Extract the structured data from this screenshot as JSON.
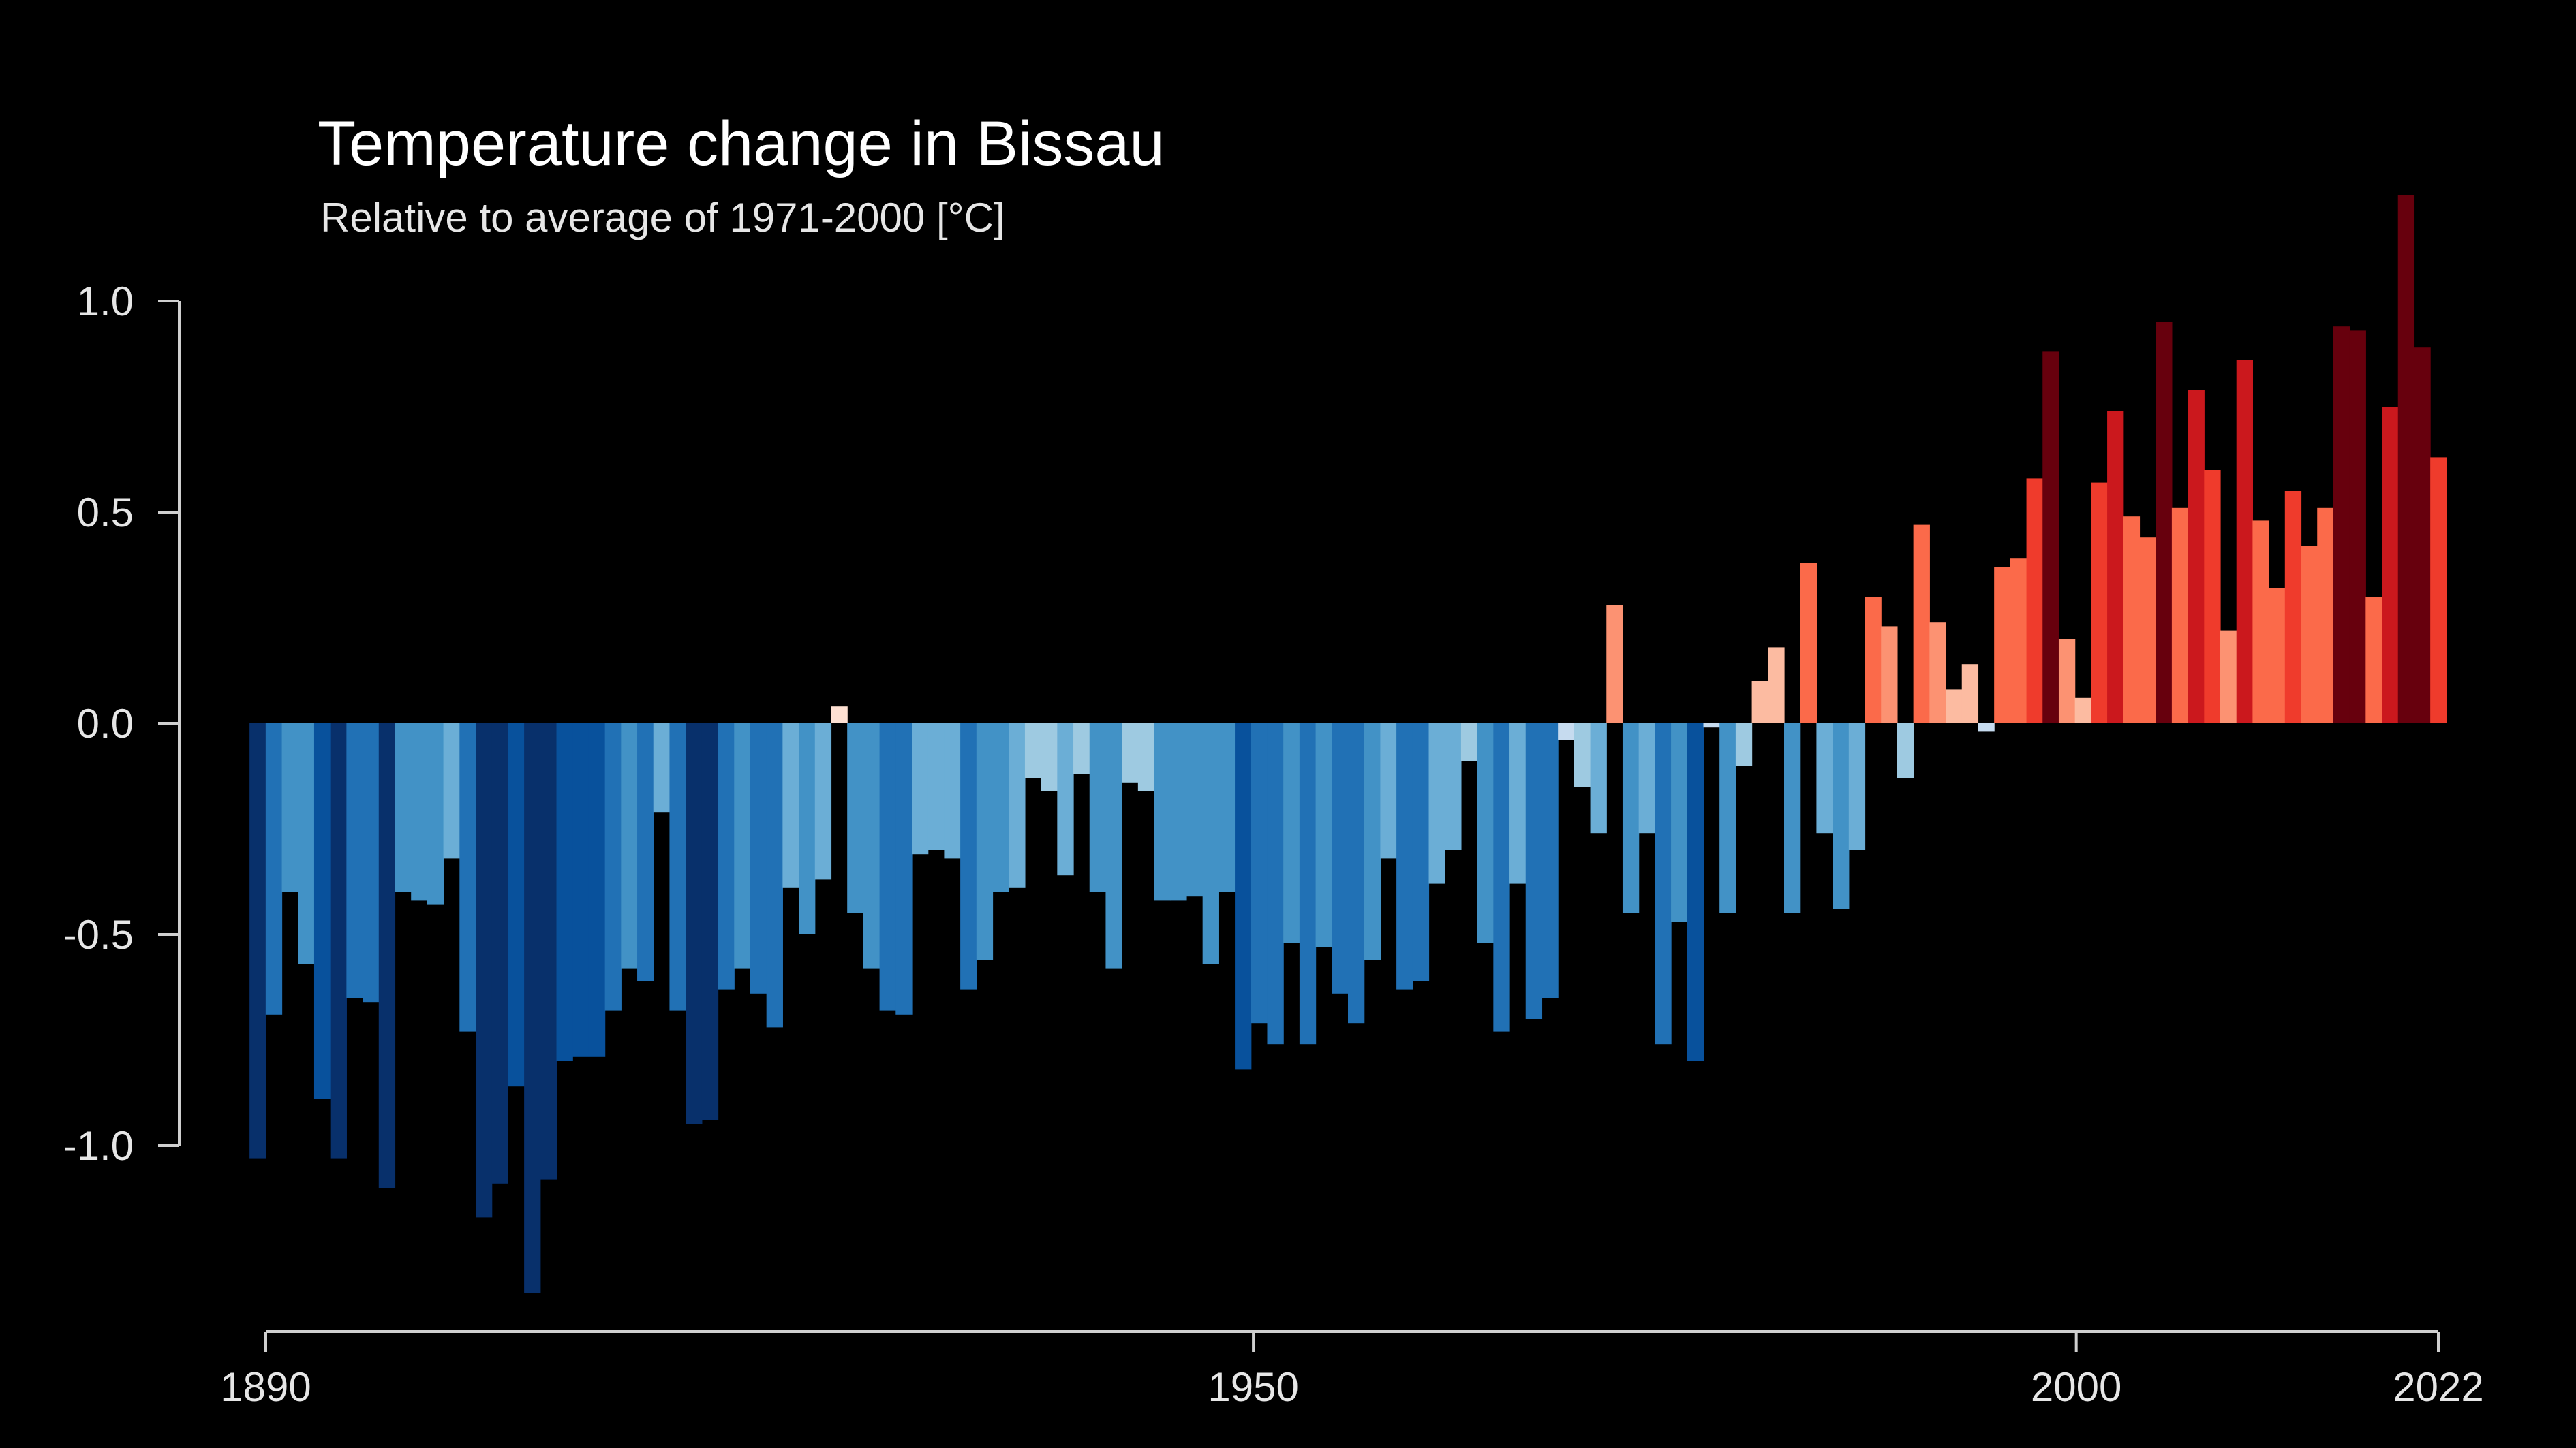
{
  "chart_data": {
    "type": "bar",
    "title": "Temperature change in Bissau",
    "subtitle": "Relative to average of 1971-2000  [°C]",
    "xlabel": "",
    "ylabel": "",
    "x_start": 1890,
    "x_end": 2022,
    "xlim": [
      1890,
      2022
    ],
    "ylim": [
      -1.35,
      1.25
    ],
    "y_ticks": [
      1.0,
      0.5,
      0.0,
      -0.5,
      -1.0
    ],
    "y_tick_labels": [
      "1.0",
      "0.5",
      "0.0",
      "-0.5",
      "-1.0"
    ],
    "x_ticks": [
      1890,
      1950,
      2000,
      2022
    ],
    "x_tick_labels": [
      "1890",
      "1950",
      "2000",
      "2022"
    ],
    "grid": false,
    "legend": "none",
    "color_scale": {
      "negative": [
        "#c6dbef",
        "#9ecae1",
        "#6baed6",
        "#4292c6",
        "#2171b5",
        "#08519c",
        "#08306b"
      ],
      "positive": [
        "#fee0d2",
        "#fcbba1",
        "#fc9272",
        "#fb6a4a",
        "#ef3b2c",
        "#cb181d",
        "#67000d"
      ]
    },
    "values": [
      -1.03,
      -0.69,
      -0.4,
      -0.57,
      -0.89,
      -1.03,
      -0.65,
      -0.66,
      -1.1,
      -0.4,
      -0.42,
      -0.43,
      -0.32,
      -0.73,
      -1.17,
      -1.09,
      -0.86,
      -1.35,
      -1.08,
      -0.8,
      -0.79,
      -0.79,
      -0.68,
      -0.58,
      -0.61,
      -0.21,
      -0.68,
      -0.95,
      -0.94,
      -0.63,
      -0.58,
      -0.64,
      -0.72,
      -0.39,
      -0.5,
      -0.37,
      0.04,
      -0.45,
      -0.58,
      -0.68,
      -0.69,
      -0.31,
      -0.3,
      -0.32,
      -0.63,
      -0.56,
      -0.4,
      -0.39,
      -0.13,
      -0.16,
      -0.36,
      -0.12,
      -0.4,
      -0.58,
      -0.14,
      -0.16,
      -0.42,
      -0.42,
      -0.41,
      -0.57,
      -0.4,
      -0.82,
      -0.71,
      -0.76,
      -0.52,
      -0.76,
      -0.53,
      -0.64,
      -0.71,
      -0.56,
      -0.32,
      -0.63,
      -0.61,
      -0.38,
      -0.3,
      -0.09,
      -0.52,
      -0.73,
      -0.38,
      -0.7,
      -0.65,
      -0.04,
      -0.15,
      -0.26,
      0.28,
      -0.45,
      -0.26,
      -0.76,
      -0.47,
      -0.8,
      -0.01,
      -0.45,
      -0.1,
      0.1,
      0.18,
      -0.45,
      0.38,
      -0.26,
      -0.44,
      -0.3,
      0.3,
      0.23,
      -0.13,
      0.47,
      0.24,
      0.08,
      0.14,
      -0.02,
      0.37,
      0.39,
      0.58,
      0.88,
      0.2,
      0.06,
      0.57,
      0.74,
      0.49,
      0.44,
      0.95,
      0.51,
      0.79,
      0.6,
      0.22,
      0.86,
      0.48,
      0.32,
      0.55,
      0.42,
      0.51,
      0.94,
      0.93,
      0.3,
      0.75,
      1.25,
      0.89,
      0.63
    ]
  }
}
